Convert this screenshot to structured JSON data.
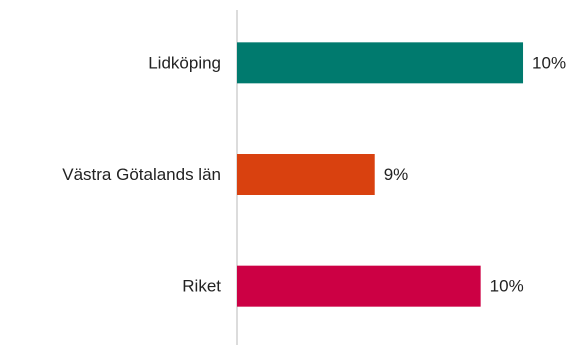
{
  "chart_data": {
    "type": "barh",
    "categories": [
      "Lidköping",
      "Västra Götalands län",
      "Riket"
    ],
    "values": [
      10.4,
      9.0,
      10.0
    ],
    "value_labels": [
      "10%",
      "9%",
      "10%"
    ],
    "colors": [
      "#007a6e",
      "#d9410f",
      "#cc0044"
    ],
    "xlim": [
      7.7,
      10.9
    ]
  }
}
